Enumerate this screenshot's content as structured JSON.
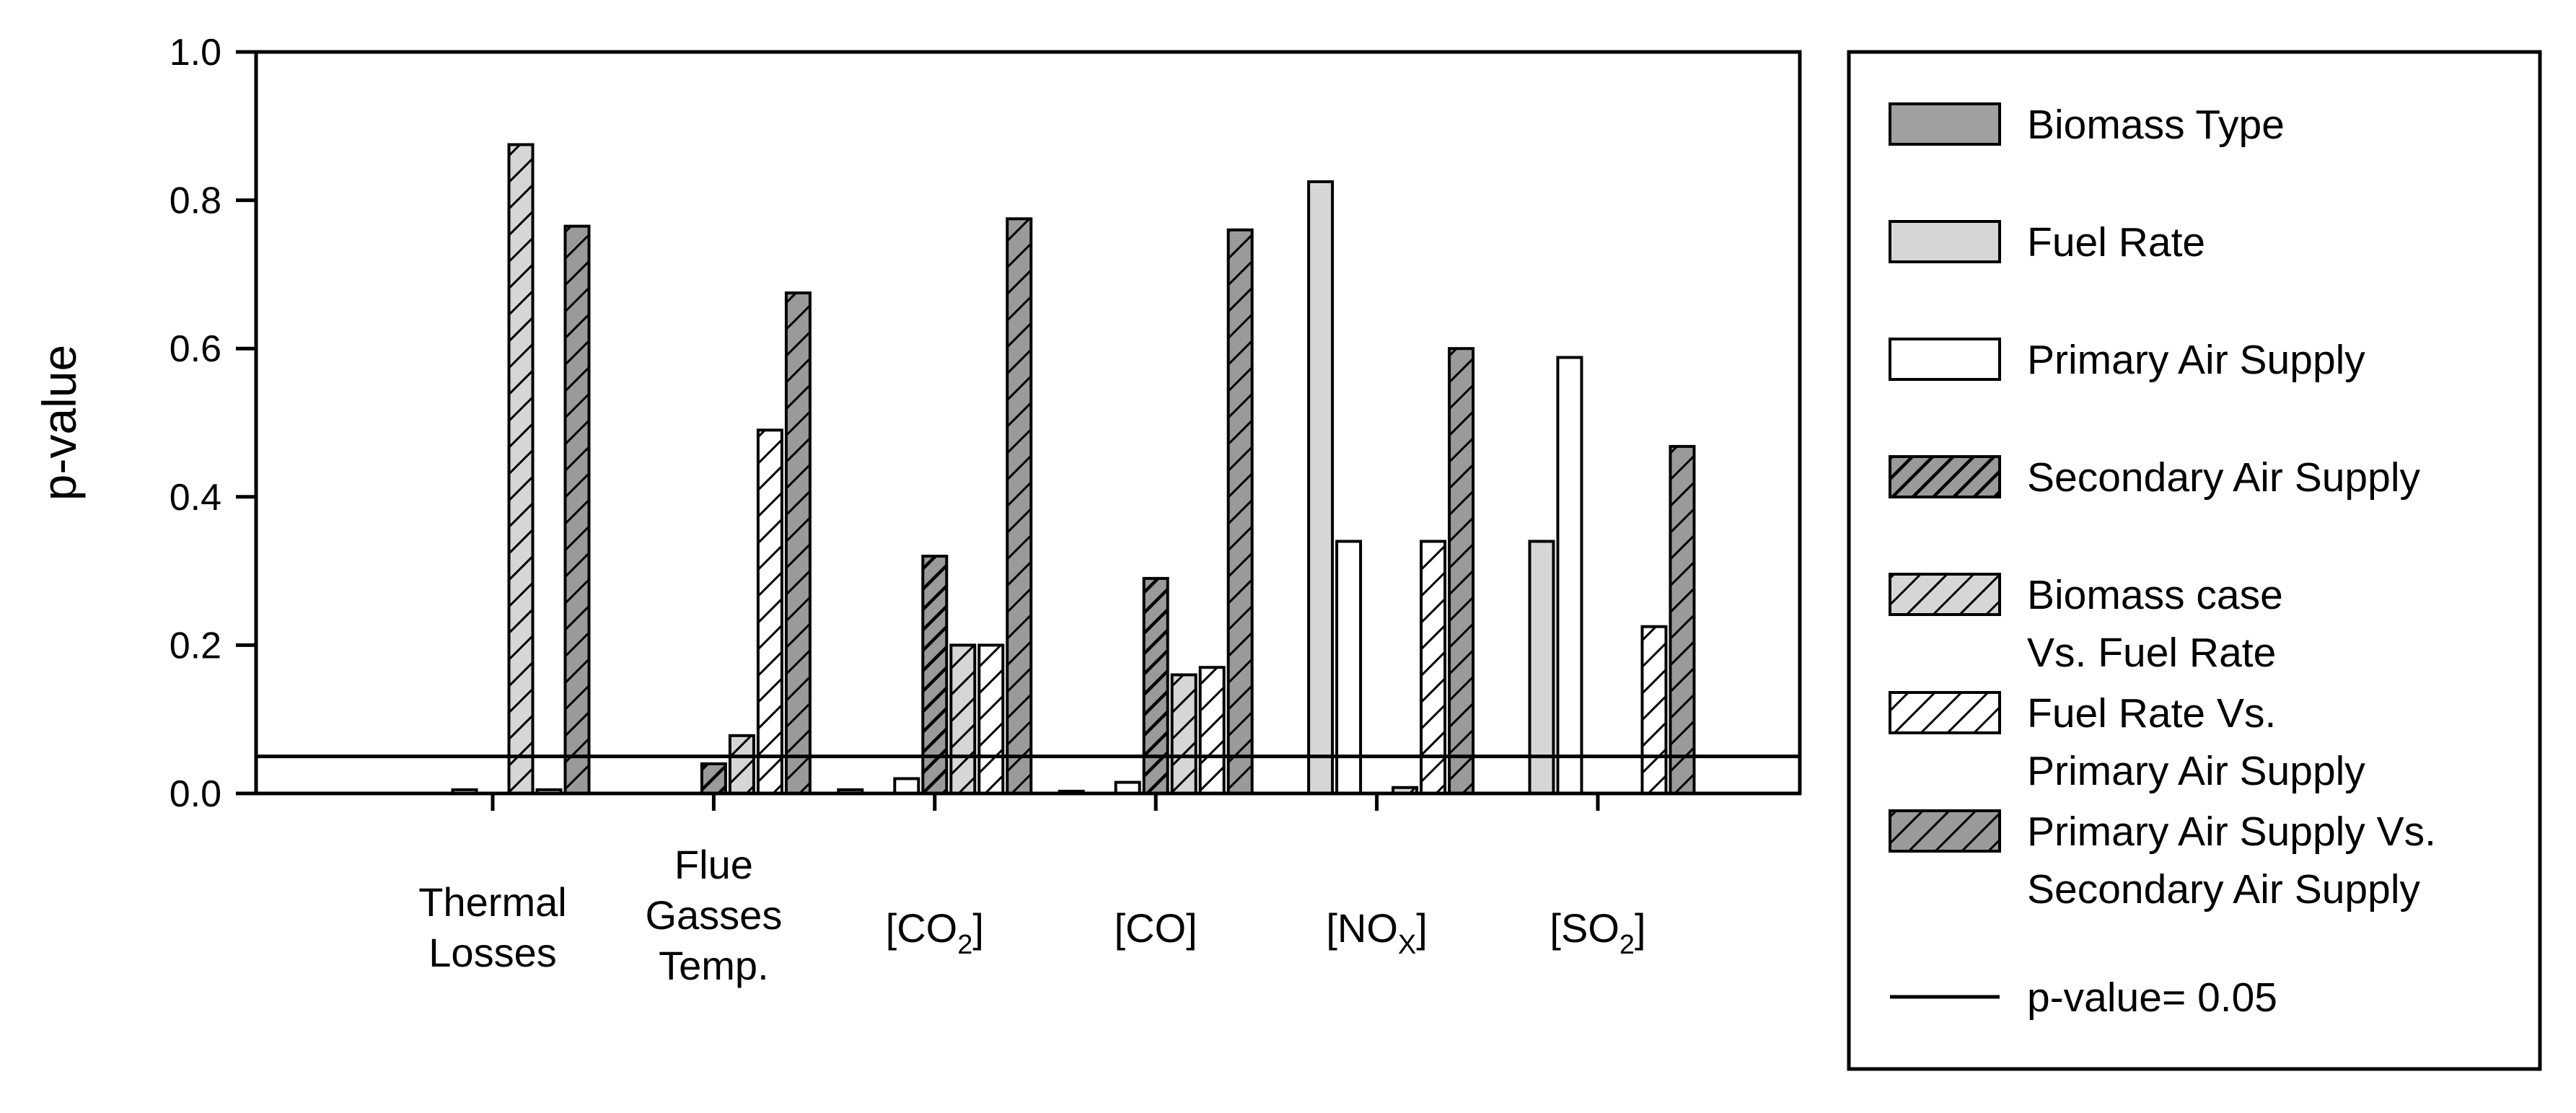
{
  "chart_data": {
    "type": "bar",
    "ylabel": "p-value",
    "ylim": [
      0,
      1
    ],
    "yticks": [
      "0.0",
      "0.2",
      "0.4",
      "0.6",
      "0.8",
      "1.0"
    ],
    "categories": [
      {
        "lines": [
          "Thermal",
          "Losses"
        ]
      },
      {
        "lines": [
          "Flue",
          "Gasses",
          "Temp."
        ]
      },
      {
        "base": "[CO",
        "sub": "2",
        "post": "]"
      },
      {
        "base": "[CO]"
      },
      {
        "base": "[NO",
        "sub": "X",
        "post": "]"
      },
      {
        "base": "[SO",
        "sub": "2",
        "post": "]"
      }
    ],
    "series": [
      {
        "name": "Biomass Type",
        "values": [
          0.0,
          0.0,
          0.005,
          0.003,
          0.0,
          0.0
        ],
        "fill": "#a0a0a0",
        "pattern": "none"
      },
      {
        "name": "Fuel  Rate",
        "values": [
          0.0,
          0.0,
          0.0,
          0.0,
          0.825,
          0.34
        ],
        "fill": "#d6d6d6",
        "pattern": "none"
      },
      {
        "name": "Primary Air Supply",
        "values": [
          0.005,
          0.0,
          0.02,
          0.015,
          0.34,
          0.588
        ],
        "fill": "#ffffff",
        "pattern": "none"
      },
      {
        "name": "Secondary Air Supply",
        "values": [
          0.0,
          0.04,
          0.32,
          0.29,
          0.0,
          0.0
        ],
        "fill": "#9a9a9a",
        "pattern": "dense"
      },
      {
        "name_lines": [
          "Biomass case",
          "Vs. Fuel Rate"
        ],
        "values": [
          0.875,
          0.078,
          0.2,
          0.16,
          0.008,
          0.0
        ],
        "fill": "#d6d6d6",
        "pattern": "sparse"
      },
      {
        "name_lines": [
          "Fuel Rate Vs.",
          "Primary Air Supply"
        ],
        "values": [
          0.005,
          0.49,
          0.2,
          0.17,
          0.34,
          0.225
        ],
        "fill": "#ffffff",
        "pattern": "sparse"
      },
      {
        "name_lines": [
          "Primary Air Supply Vs.",
          "Secondary Air Supply"
        ],
        "values": [
          0.765,
          0.675,
          0.775,
          0.76,
          0.6,
          0.468
        ],
        "fill": "#9a9a9a",
        "pattern": "sparse"
      }
    ],
    "reference_line": {
      "name": "p-value= 0.05",
      "value": 0.05
    },
    "legend_position": "right",
    "grid": false
  }
}
